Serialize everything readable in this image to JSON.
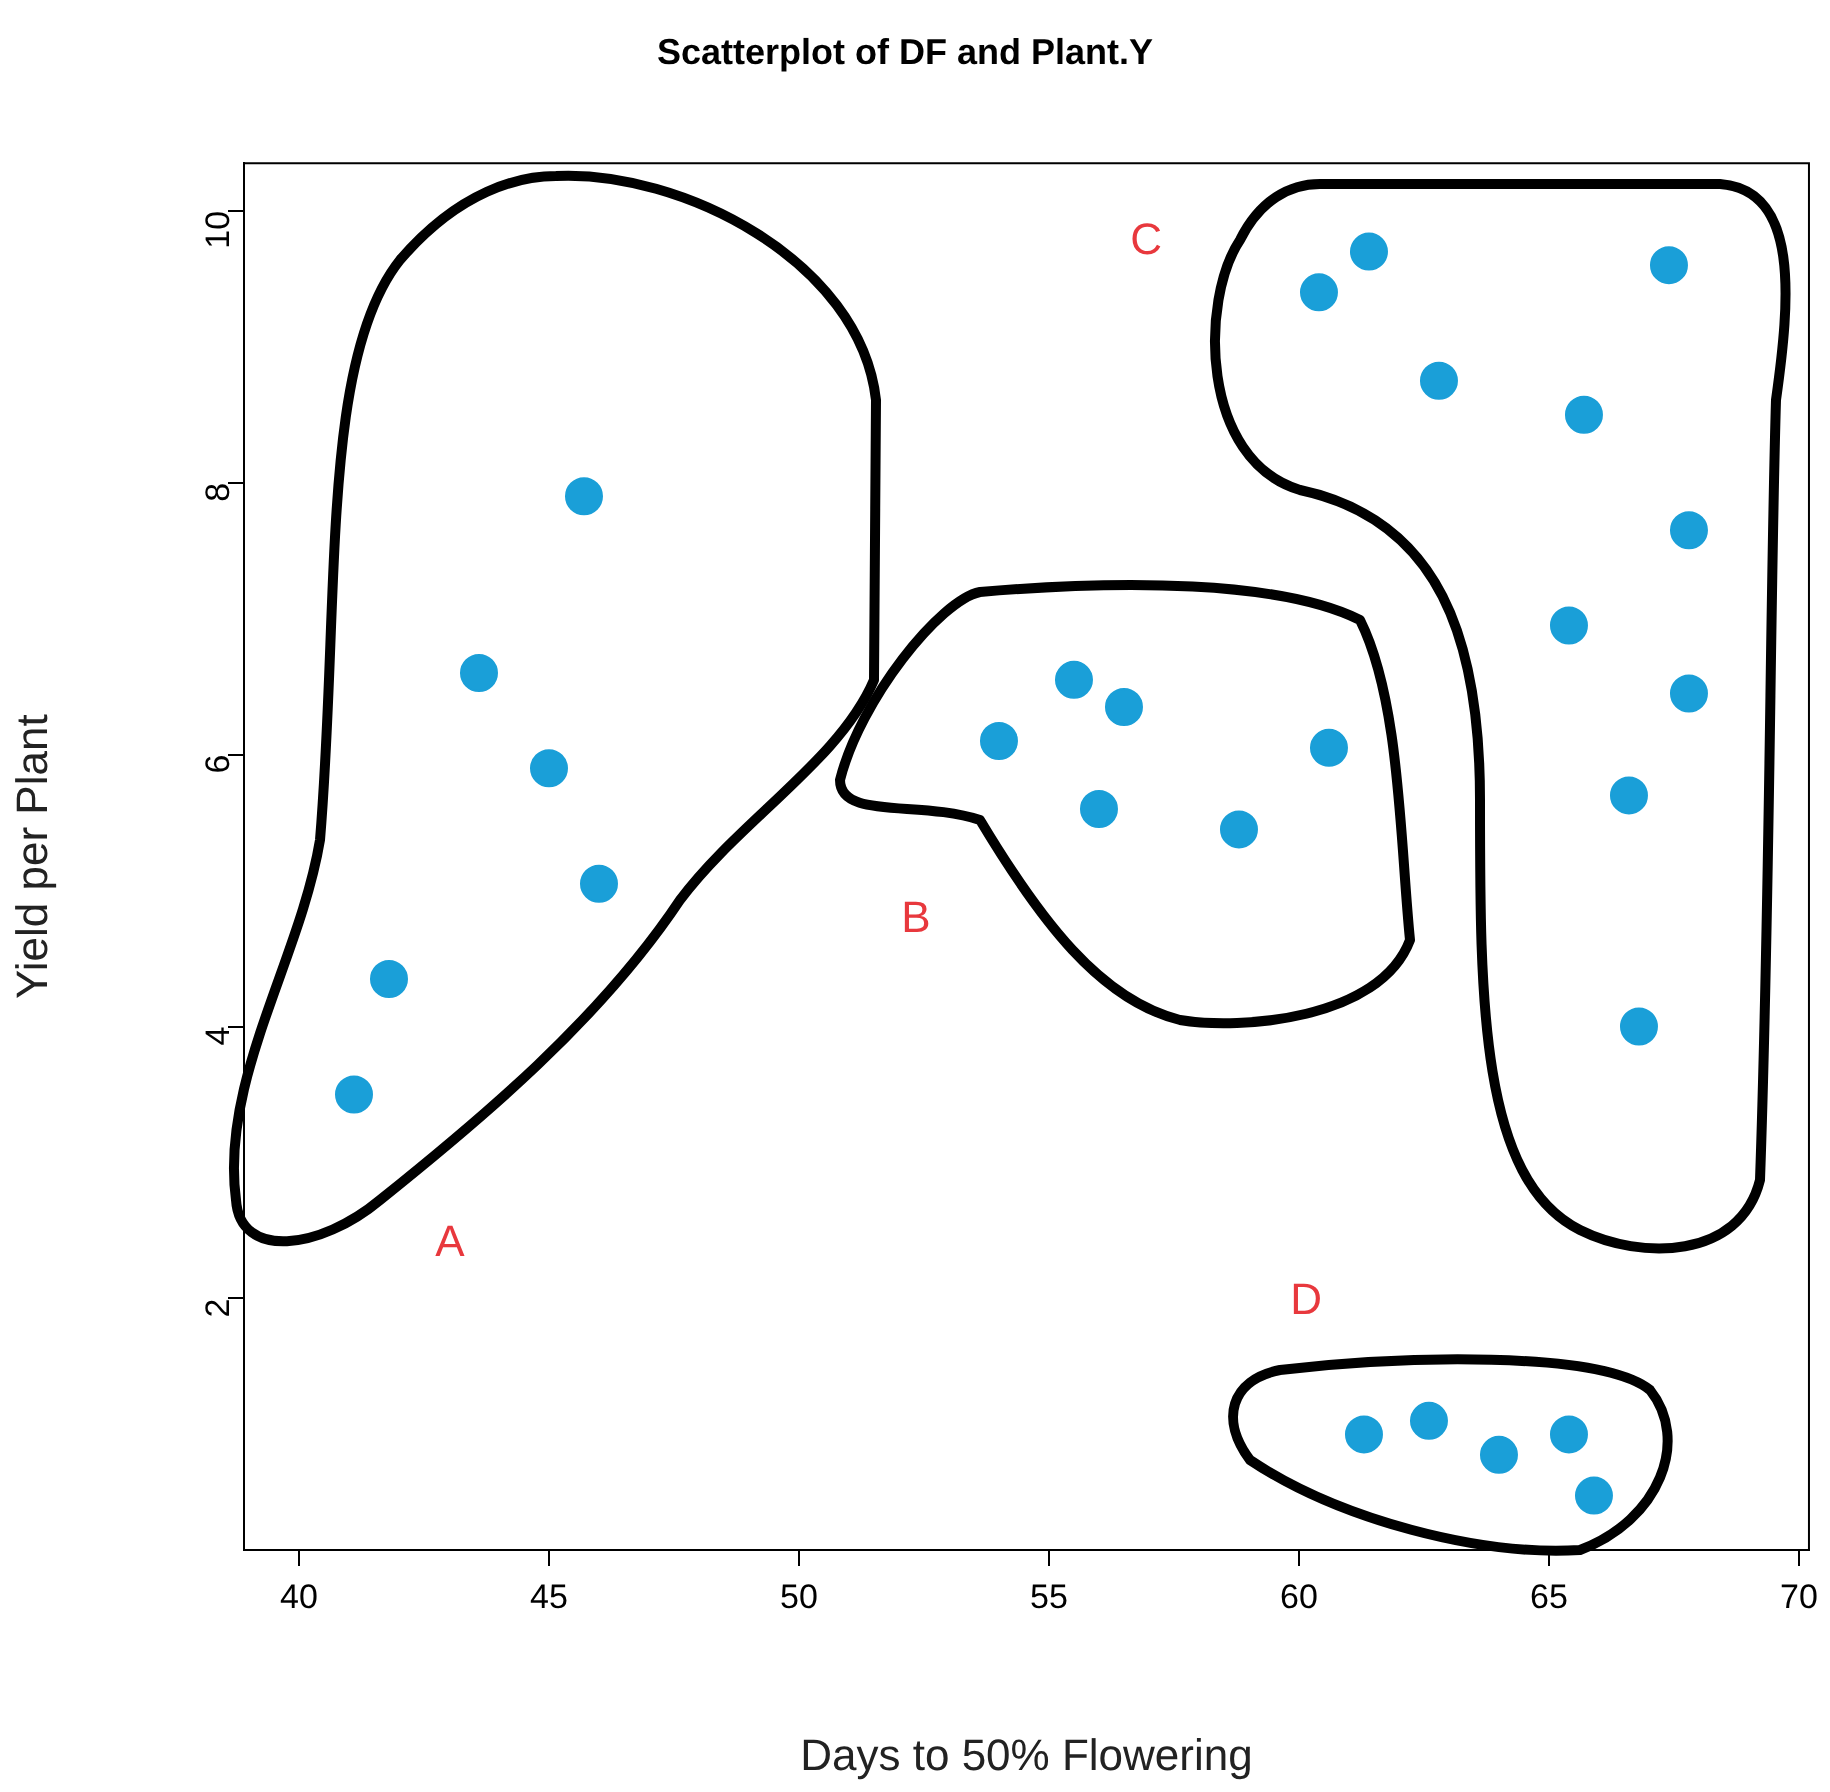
{
  "chart_data": {
    "type": "scatter",
    "title": "Scatterplot of DF and Plant.Y",
    "xlabel": "Days to 50% Flowering",
    "ylabel": "Yield per Plant",
    "series": [
      {
        "color": "#1a9fd8",
        "x": [
          45.7,
          43.6,
          45.0,
          46.0,
          41.8,
          41.1,
          54.0,
          55.5,
          56.5,
          56.0,
          58.8,
          60.6,
          60.4,
          61.4,
          62.8,
          67.4,
          65.7,
          67.8,
          65.4,
          67.8,
          66.6,
          66.8,
          61.3,
          62.6,
          64.0,
          65.4,
          65.9
        ],
        "values": [
          7.9,
          6.6,
          5.9,
          5.05,
          4.35,
          3.5,
          6.1,
          6.55,
          6.35,
          5.6,
          5.45,
          6.05,
          9.4,
          9.7,
          8.75,
          9.6,
          8.5,
          7.65,
          6.95,
          6.45,
          5.7,
          4.0,
          1.0,
          1.1,
          0.85,
          1.0,
          0.55
        ]
      }
    ],
    "xlim": [
      38.9,
      70.2
    ],
    "xticks": [
      40,
      45,
      50,
      55,
      60,
      65,
      70
    ],
    "ylim": [
      0.15,
      10.35
    ],
    "yticks": [
      2,
      4,
      6,
      8,
      10
    ],
    "grid": false,
    "legend": false,
    "marker": "circle",
    "annotations": [
      "A",
      "B",
      "C",
      "D"
    ]
  }
}
